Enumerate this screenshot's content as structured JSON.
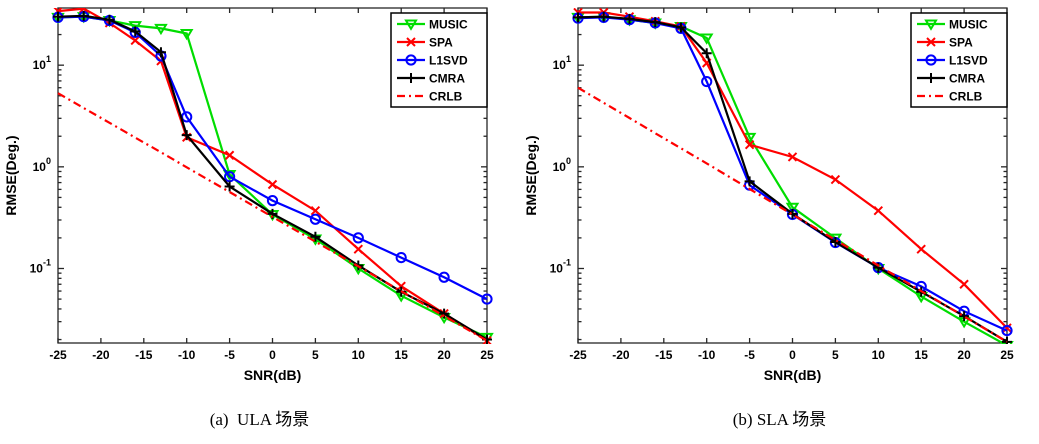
{
  "page_background": "#ffffff",
  "chart_data": [
    {
      "type": "line",
      "caption": "(a)  ULA 场景",
      "xlabel": "SNR(dB)",
      "ylabel": "RMSE(Deg.)",
      "xlim": [
        -25,
        25
      ],
      "ylim": [
        0.0185,
        36.5
      ],
      "log_y": true,
      "grid": false,
      "legend_position": "top-right",
      "xticks": [
        -25,
        -20,
        -15,
        -10,
        -5,
        0,
        5,
        10,
        15,
        20,
        25
      ],
      "ytick_labels": [
        "10^1",
        "10^0",
        "10^-1"
      ],
      "x": [
        -25,
        -22,
        -19,
        -16,
        -13,
        -10,
        -5,
        0,
        5,
        10,
        15,
        20,
        25
      ],
      "series": [
        {
          "name": "MUSIC",
          "color": "#00dd00",
          "marker": "triangle-down",
          "dash": "solid",
          "values": [
            29.5,
            30,
            27.5,
            24.5,
            23,
            20.5,
            0.84,
            0.34,
            0.195,
            0.1,
            0.054,
            0.033,
            0.021
          ]
        },
        {
          "name": "SPA",
          "color": "#ff0000",
          "marker": "x",
          "dash": "solid",
          "values": [
            34,
            36,
            26,
            17.5,
            11,
            1.95,
            1.3,
            0.67,
            0.37,
            0.155,
            0.067,
            0.036,
            0.0195
          ]
        },
        {
          "name": "L1SVD",
          "color": "#0000ff",
          "marker": "circle",
          "dash": "solid",
          "values": [
            29.5,
            30,
            27.5,
            21,
            12.3,
            3.1,
            0.8,
            0.465,
            0.305,
            0.2,
            0.128,
            0.082,
            0.05
          ]
        },
        {
          "name": "CMRA",
          "color": "#000000",
          "marker": "plus",
          "dash": "solid",
          "values": [
            30,
            30.5,
            28,
            21.5,
            13.4,
            2.05,
            0.64,
            0.345,
            0.205,
            0.107,
            0.059,
            0.036,
            0.02
          ]
        },
        {
          "name": "CRLB",
          "color": "#ff0000",
          "marker": "none",
          "dash": "dashdot",
          "values": [
            5.3,
            3.79,
            2.71,
            1.94,
            1.39,
            0.99,
            0.566,
            0.322,
            0.184,
            0.105,
            0.0598,
            0.0341,
            0.0195
          ]
        }
      ]
    },
    {
      "type": "line",
      "caption": "(b) SLA 场景",
      "xlabel": "SNR(dB)",
      "ylabel": "RMSE(Deg.)",
      "xlim": [
        -25,
        25
      ],
      "ylim": [
        0.0185,
        36.5
      ],
      "log_y": true,
      "grid": false,
      "legend_position": "top-right",
      "xticks": [
        -25,
        -20,
        -15,
        -10,
        -5,
        0,
        5,
        10,
        15,
        20,
        25
      ],
      "ytick_labels": [
        "10^1",
        "10^0",
        "10^-1"
      ],
      "x": [
        -25,
        -22,
        -19,
        -16,
        -13,
        -10,
        -5,
        0,
        5,
        10,
        15,
        20,
        25
      ],
      "series": [
        {
          "name": "MUSIC",
          "color": "#00dd00",
          "marker": "triangle-down",
          "dash": "solid",
          "values": [
            29.5,
            30,
            28,
            26,
            24,
            18.5,
            1.95,
            0.4,
            0.199,
            0.1,
            0.053,
            0.03,
            0.0175
          ]
        },
        {
          "name": "SPA",
          "color": "#ff0000",
          "marker": "x",
          "dash": "solid",
          "values": [
            33,
            33,
            30,
            27,
            24,
            10.5,
            1.65,
            1.25,
            0.75,
            0.37,
            0.155,
            0.07,
            0.026
          ]
        },
        {
          "name": "L1SVD",
          "color": "#0000ff",
          "marker": "circle",
          "dash": "solid",
          "values": [
            29,
            29.5,
            28,
            26,
            23,
            6.9,
            0.66,
            0.34,
            0.18,
            0.102,
            0.0666,
            0.038,
            0.0245
          ]
        },
        {
          "name": "CMRA",
          "color": "#000000",
          "marker": "plus",
          "dash": "solid",
          "values": [
            29.5,
            30,
            28.5,
            26.5,
            23.5,
            13.1,
            0.72,
            0.345,
            0.182,
            0.102,
            0.059,
            0.034,
            0.019
          ]
        },
        {
          "name": "CRLB",
          "color": "#ff0000",
          "marker": "none",
          "dash": "dashdot",
          "values": [
            6.0,
            4.26,
            3.02,
            2.14,
            1.52,
            1.08,
            0.605,
            0.34,
            0.191,
            0.107,
            0.06,
            0.0338,
            0.019
          ]
        }
      ]
    }
  ]
}
